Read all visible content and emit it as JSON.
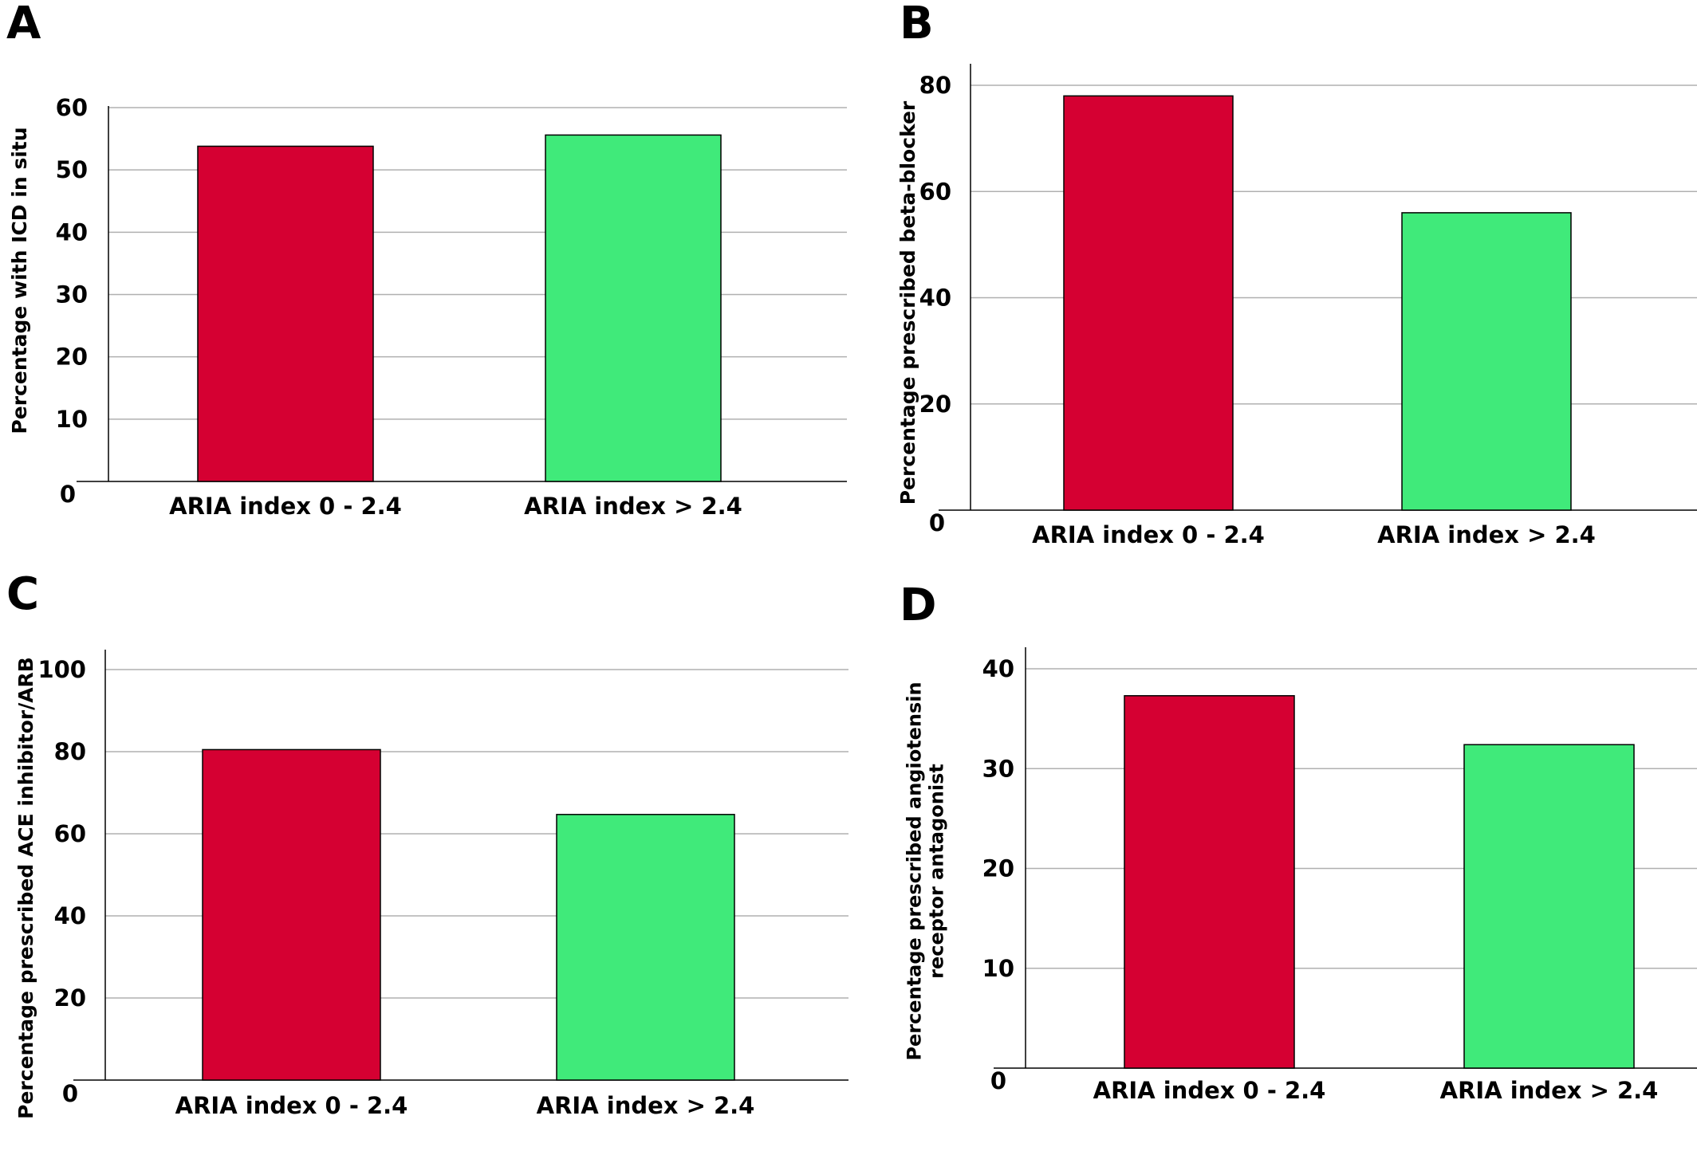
{
  "figure": {
    "panels": [
      "A",
      "B",
      "C",
      "D"
    ]
  },
  "colors": {
    "bar_group1": "#d50032",
    "bar_group2": "#40ea7a",
    "gridline": "#b0b0b0",
    "axis": "#000000"
  },
  "chart_data": [
    {
      "panel": "A",
      "type": "bar",
      "categories": [
        "ARIA index 0 - 2.4",
        "ARIA index > 2.4"
      ],
      "values": [
        53.8,
        55.6
      ],
      "ylabel": "Percentage with ICD in situ",
      "xlabel": "",
      "ylim": [
        0,
        60
      ],
      "yticks": [
        0,
        10,
        20,
        30,
        40,
        50,
        60
      ],
      "grid": true
    },
    {
      "panel": "B",
      "type": "bar",
      "categories": [
        "ARIA index 0 - 2.4",
        "ARIA index > 2.4"
      ],
      "values": [
        78,
        56
      ],
      "ylabel": "Percentage prescribed beta-blocker",
      "xlabel": "",
      "ylim": [
        0,
        80
      ],
      "yticks": [
        0,
        20,
        40,
        60,
        80
      ],
      "grid": true
    },
    {
      "panel": "C",
      "type": "bar",
      "categories": [
        "ARIA index 0 - 2.4",
        "ARIA index > 2.4"
      ],
      "values": [
        80.5,
        64.7
      ],
      "ylabel": "Percentage prescribed ACE inhibitor/ARB",
      "xlabel": "",
      "ylim": [
        0,
        100
      ],
      "yticks": [
        0,
        20,
        40,
        60,
        80,
        100
      ],
      "grid": true
    },
    {
      "panel": "D",
      "type": "bar",
      "categories": [
        "ARIA index 0 - 2.4",
        "ARIA index > 2.4"
      ],
      "values": [
        37.3,
        32.4
      ],
      "ylabel": [
        "Percentage prescribed angiotensin",
        "receptor antagonist"
      ],
      "xlabel": "",
      "ylim": [
        0,
        40
      ],
      "yticks": [
        0,
        10,
        20,
        30,
        40
      ],
      "grid": true
    }
  ]
}
